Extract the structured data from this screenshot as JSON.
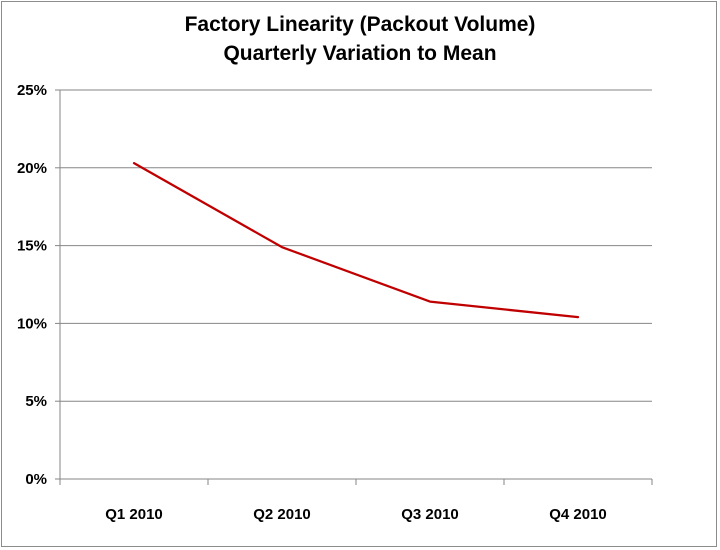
{
  "chart_data": {
    "type": "line",
    "title_line1": "Factory Linearity (Packout Volume)",
    "title_line2": "Quarterly Variation to Mean",
    "categories": [
      "Q1 2010",
      "Q2 2010",
      "Q3 2010",
      "Q4 2010"
    ],
    "series": [
      {
        "values": [
          20.3,
          14.9,
          11.4,
          10.4
        ],
        "color": "#c00000"
      }
    ],
    "ylim": [
      0,
      25
    ],
    "yticks": [
      0,
      5,
      10,
      15,
      20,
      25
    ],
    "ytick_labels": [
      "0%",
      "5%",
      "10%",
      "15%",
      "20%",
      "25%"
    ],
    "grid": true,
    "legend": "none",
    "xlabel": "",
    "ylabel": ""
  }
}
